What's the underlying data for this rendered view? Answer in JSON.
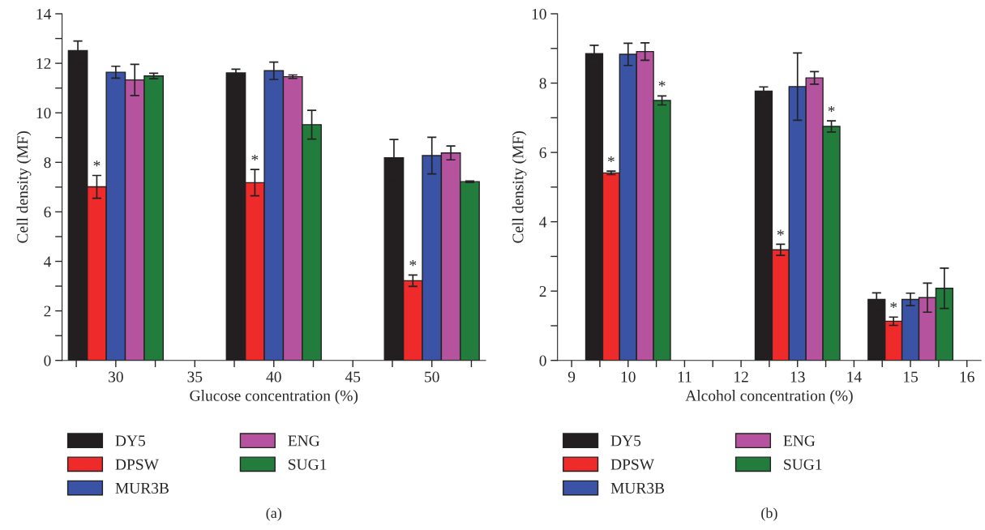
{
  "chart_data": [
    {
      "type": "bar",
      "title": "(a)",
      "xlabel": "Glucose concentration (%)",
      "ylabel": "Cell density (MF)",
      "xlim": [
        26.6,
        53.4
      ],
      "xticks": [
        {
          "value": 27.5,
          "label": null
        },
        30,
        {
          "value": 32.5,
          "label": null
        },
        35,
        {
          "value": 37.5,
          "label": null
        },
        40,
        {
          "value": 42.5,
          "label": null
        },
        45,
        {
          "value": 47.5,
          "label": null
        },
        50,
        {
          "value": 52.5,
          "label": null
        }
      ],
      "ylim": [
        0,
        14
      ],
      "yticks": [
        0,
        {
          "value": 1,
          "label": null
        },
        2,
        {
          "value": 3,
          "label": null
        },
        4,
        {
          "value": 5,
          "label": null
        },
        6,
        {
          "value": 7,
          "label": null
        },
        8,
        {
          "value": 9,
          "label": null
        },
        10,
        {
          "value": 11,
          "label": null
        },
        12,
        {
          "value": 13,
          "label": null
        },
        14
      ],
      "series": [
        {
          "name": "DY5",
          "color": "#231f20",
          "x": [
            27.6,
            37.6,
            47.6
          ],
          "values": [
            12.51,
            11.61,
            8.18
          ],
          "errors": [
            0.39,
            0.15,
            0.74
          ]
        },
        {
          "name": "DPSW",
          "color": "#ee2a2a",
          "x": [
            28.8,
            38.8,
            48.8
          ],
          "values": [
            7.01,
            7.18,
            3.22
          ],
          "errors": [
            0.46,
            0.53,
            0.23
          ]
        },
        {
          "name": "MUR3B",
          "color": "#3a53a4",
          "x": [
            30,
            40,
            50
          ],
          "values": [
            11.64,
            11.7,
            8.27
          ],
          "errors": [
            0.24,
            0.35,
            0.74
          ]
        },
        {
          "name": "ENG",
          "color": "#b5539f",
          "x": [
            31.2,
            41.2,
            51.2
          ],
          "values": [
            11.33,
            11.46,
            8.38
          ],
          "errors": [
            0.63,
            0.07,
            0.28
          ]
        },
        {
          "name": "SUG1",
          "color": "#227c3c",
          "x": [
            32.4,
            42.4,
            52.4
          ],
          "values": [
            11.49,
            9.52,
            7.22
          ],
          "errors": [
            0.11,
            0.58,
            0.03
          ]
        }
      ],
      "annotations": [
        {
          "text": "*",
          "x": 28.8,
          "y": 7.47
        },
        {
          "text": "*",
          "x": 38.8,
          "y": 7.71
        },
        {
          "text": "*",
          "x": 48.8,
          "y": 3.45
        }
      ],
      "legend": "bottom",
      "grid": false
    },
    {
      "type": "bar",
      "title": "(b)",
      "xlabel": "Alcohol concentration (%)",
      "ylabel": "Cell density (MF)",
      "xlim": [
        8.75,
        16.25
      ],
      "xticks": [
        9,
        {
          "value": 9.5,
          "label": null
        },
        10,
        {
          "value": 10.5,
          "label": null
        },
        11,
        {
          "value": 11.5,
          "label": null
        },
        12,
        {
          "value": 12.5,
          "label": null
        },
        13,
        {
          "value": 13.5,
          "label": null
        },
        14,
        {
          "value": 14.5,
          "label": null
        },
        15,
        {
          "value": 15.5,
          "label": null
        },
        16
      ],
      "ylim": [
        0,
        10
      ],
      "yticks": [
        0,
        {
          "value": 1,
          "label": null
        },
        2,
        {
          "value": 3,
          "label": null
        },
        4,
        {
          "value": 5,
          "label": null
        },
        6,
        {
          "value": 7,
          "label": null
        },
        8,
        {
          "value": 9,
          "label": null
        },
        10
      ],
      "series": [
        {
          "name": "DY5",
          "color": "#231f20",
          "x": [
            9.4,
            12.4,
            14.4
          ],
          "values": [
            8.85,
            7.77,
            1.76
          ],
          "errors": [
            0.24,
            0.12,
            0.19
          ]
        },
        {
          "name": "DPSW",
          "color": "#ee2a2a",
          "x": [
            9.7,
            12.7,
            14.7
          ],
          "values": [
            5.41,
            3.19,
            1.13
          ],
          "errors": [
            0.05,
            0.16,
            0.12
          ]
        },
        {
          "name": "MUR3B",
          "color": "#3a53a4",
          "x": [
            10,
            13,
            15
          ],
          "values": [
            8.83,
            7.9,
            1.76
          ],
          "errors": [
            0.32,
            0.97,
            0.18
          ]
        },
        {
          "name": "ENG",
          "color": "#b5539f",
          "x": [
            10.3,
            13.3,
            15.3
          ],
          "values": [
            8.91,
            8.15,
            1.81
          ],
          "errors": [
            0.25,
            0.18,
            0.42
          ]
        },
        {
          "name": "SUG1",
          "color": "#227c3c",
          "x": [
            10.6,
            13.6,
            15.6
          ],
          "values": [
            7.5,
            6.75,
            2.08
          ],
          "errors": [
            0.13,
            0.16,
            0.58
          ]
        }
      ],
      "annotations": [
        {
          "text": "*",
          "x": 9.7,
          "y": 5.46
        },
        {
          "text": "*",
          "x": 12.7,
          "y": 3.34
        },
        {
          "text": "*",
          "x": 14.7,
          "y": 1.25
        },
        {
          "text": "*",
          "x": 10.6,
          "y": 7.64
        },
        {
          "text": "*",
          "x": 13.6,
          "y": 6.91
        }
      ],
      "legend": "bottom",
      "grid": false
    }
  ]
}
